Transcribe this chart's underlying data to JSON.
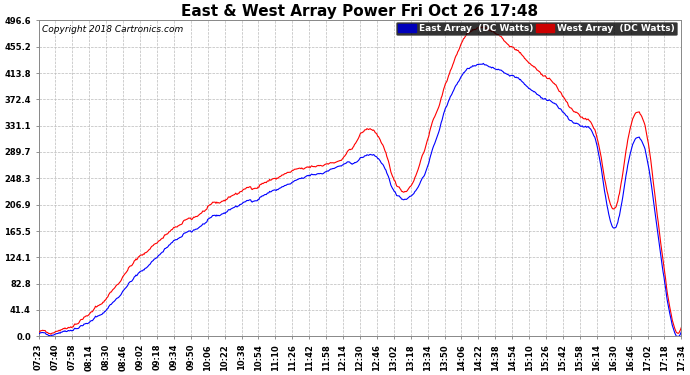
{
  "title": "East & West Array Power Fri Oct 26 17:48",
  "copyright": "Copyright 2018 Cartronics.com",
  "east_label": "East Array  (DC Watts)",
  "west_label": "West Array  (DC Watts)",
  "east_color": "#0000ff",
  "west_color": "#ff0000",
  "background_color": "#ffffff",
  "plot_bg_color": "#ffffff",
  "grid_color": "#bbbbbb",
  "ylim": [
    0,
    496.6
  ],
  "yticks": [
    0.0,
    41.4,
    82.8,
    124.1,
    165.5,
    206.9,
    248.3,
    289.7,
    331.1,
    372.4,
    413.8,
    455.2,
    496.6
  ],
  "xtick_labels": [
    "07:23",
    "07:40",
    "07:58",
    "08:14",
    "08:30",
    "08:46",
    "09:02",
    "09:18",
    "09:34",
    "09:50",
    "10:06",
    "10:22",
    "10:38",
    "10:54",
    "11:10",
    "11:26",
    "11:42",
    "11:58",
    "12:14",
    "12:30",
    "12:46",
    "13:02",
    "13:18",
    "13:34",
    "13:50",
    "14:06",
    "14:22",
    "14:38",
    "14:54",
    "15:10",
    "15:26",
    "15:42",
    "15:58",
    "16:14",
    "16:30",
    "16:46",
    "17:02",
    "17:18",
    "17:34"
  ],
  "title_fontsize": 11,
  "tick_fontsize": 6,
  "copyright_fontsize": 6.5
}
